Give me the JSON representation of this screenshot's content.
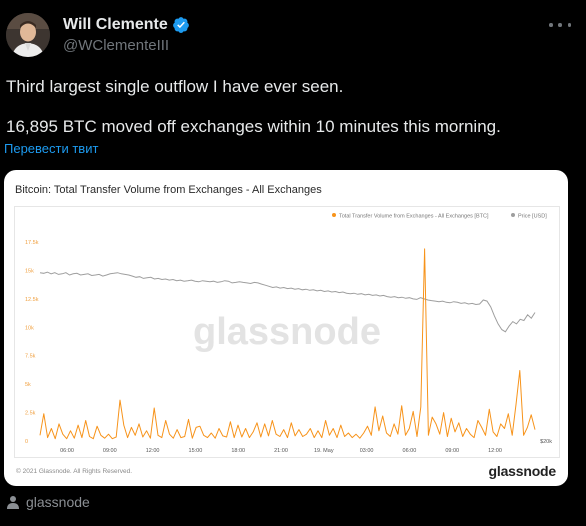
{
  "author": {
    "name": "Will Clemente",
    "handle": "@WClementeIII"
  },
  "tweet": {
    "line1": "Third largest single outflow I have ever seen.",
    "line2": "16,895 BTC moved off exchanges within 10 minutes this morning.",
    "translate_label": "Перевести твит"
  },
  "card": {
    "copyright": "© 2021 Glassnode. All Rights Reserved.",
    "logo": "glassnode",
    "source_label": "glassnode"
  },
  "chart_data": {
    "type": "line",
    "title": "Bitcoin: Total Transfer Volume from Exchanges - All Exchanges",
    "watermark": "glassnode",
    "legend_position": "top-right",
    "series": [
      {
        "name": "Total Transfer Volume from Exchanges - All Exchanges [BTC]",
        "color": "#f7931a",
        "axis": "left",
        "values": [
          500,
          2400,
          300,
          1100,
          200,
          1500,
          600,
          200,
          900,
          250,
          1400,
          300,
          1800,
          400,
          200,
          1300,
          500,
          250,
          600,
          200,
          350,
          3600,
          1400,
          300,
          1200,
          500,
          1500,
          350,
          900,
          250,
          2900,
          500,
          300,
          1800,
          600,
          250,
          1000,
          300,
          400,
          1900,
          250,
          1200,
          1300,
          500,
          300,
          700,
          250,
          1100,
          450,
          350,
          1700,
          300,
          1400,
          350,
          1100,
          300,
          800,
          1600,
          350,
          1500,
          450,
          1800,
          600,
          400,
          1000,
          300,
          1600,
          450,
          1000,
          400,
          600,
          1100,
          300,
          900,
          300,
          1800,
          500,
          1100,
          300,
          1400,
          400,
          700,
          300,
          600,
          250,
          700,
          1300,
          500,
          3000,
          900,
          2200,
          700,
          400,
          1500,
          600,
          3100,
          500,
          1100,
          2600,
          400,
          3000,
          16895,
          500,
          2100,
          1500,
          600,
          2500,
          400,
          2000,
          800,
          1600,
          400,
          1100,
          600,
          300,
          1800,
          1200,
          500,
          2800,
          800,
          400,
          1500,
          1100,
          2400,
          500,
          3200,
          6200,
          500,
          1200,
          2300,
          1000
        ]
      },
      {
        "name": "Price [USD]",
        "color": "#9e9e9e",
        "axis": "right",
        "values": [
          14800,
          14750,
          14850,
          14700,
          14800,
          14650,
          14700,
          14800,
          14600,
          14700,
          14750,
          14600,
          14650,
          14700,
          14550,
          14600,
          14650,
          14500,
          14600,
          14700,
          14750,
          14800,
          14700,
          14650,
          14600,
          14500,
          14400,
          14450,
          14300,
          14350,
          14400,
          14250,
          14300,
          14200,
          14250,
          14150,
          14200,
          14100,
          14150,
          14050,
          14100,
          14150,
          14050,
          14000,
          14100,
          14050,
          14000,
          14050,
          13950,
          14000,
          14100,
          14050,
          13900,
          13950,
          14000,
          13950,
          13900,
          13850,
          13950,
          13900,
          13800,
          13700,
          13600,
          13500,
          13550,
          13450,
          13500,
          13400,
          13450,
          13350,
          13400,
          13300,
          13350,
          13250,
          13300,
          13200,
          13250,
          13150,
          13200,
          13100,
          13150,
          13050,
          13100,
          13000,
          12950,
          13000,
          12900,
          12950,
          12850,
          12900,
          12800,
          12850,
          12750,
          12800,
          12700,
          12650,
          12700,
          12600,
          12650,
          12550,
          12600,
          12500,
          12450,
          12600,
          12500,
          12400,
          12350,
          12300,
          12250,
          12300,
          12200,
          12150,
          12250,
          12200,
          12100,
          12150,
          12050,
          12100,
          12000,
          12050,
          12400,
          12300,
          11800,
          11000,
          10300,
          9800,
          9600,
          10100,
          10500,
          10300,
          10700,
          10600,
          11100,
          10800,
          11300
        ]
      }
    ],
    "x_tick_labels": [
      "06:00",
      "09:00",
      "12:00",
      "15:00",
      "18:00",
      "21:00",
      "19. May",
      "03:00",
      "06:00",
      "09:00",
      "12:00"
    ],
    "y_left_ticks": [
      "0",
      "2.5k",
      "5k",
      "7.5k",
      "10k",
      "12.5k",
      "15k",
      "17.5k"
    ],
    "y_left_range": [
      0,
      17500
    ],
    "y_right_ticks": [
      "$20k"
    ],
    "grid": false
  }
}
